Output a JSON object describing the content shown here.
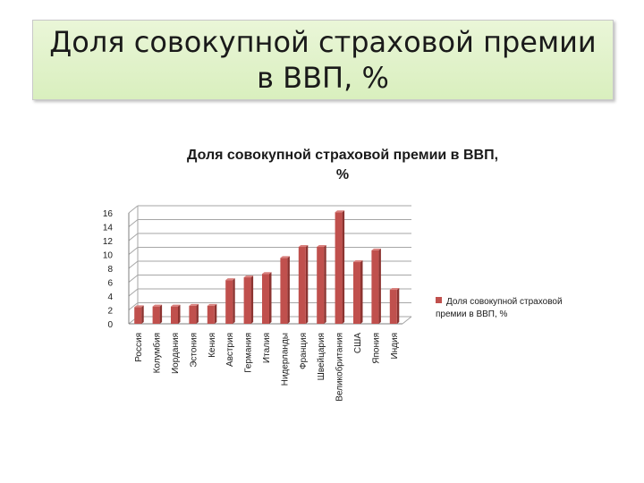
{
  "slide": {
    "title": "Доля совокупной страховой премии\nв ВВП, %"
  },
  "chart_data": {
    "type": "bar",
    "title": "Доля совокупной страховой премии в ВВП,\n%",
    "categories": [
      "Россия",
      "Колумбия",
      "Иордания",
      "Эстония",
      "Кения",
      "Австрия",
      "Германия",
      "Италия",
      "Нидерланды",
      "Франция",
      "Швейцария",
      "Великобритания",
      "США",
      "Япония",
      "Индия"
    ],
    "series": [
      {
        "name": "Доля совокупной страховой премии в ВВП, %",
        "values": [
          2.4,
          2.5,
          2.5,
          2.6,
          2.6,
          6.3,
          6.7,
          7.2,
          9.5,
          11.1,
          11.1,
          16.1,
          8.9,
          10.6,
          4.9
        ]
      }
    ],
    "ylim": [
      0,
      16
    ],
    "yticks": [
      0,
      2,
      4,
      6,
      8,
      10,
      12,
      14,
      16
    ],
    "grid": true,
    "legend": "right",
    "bar_color": "#c0504d"
  }
}
